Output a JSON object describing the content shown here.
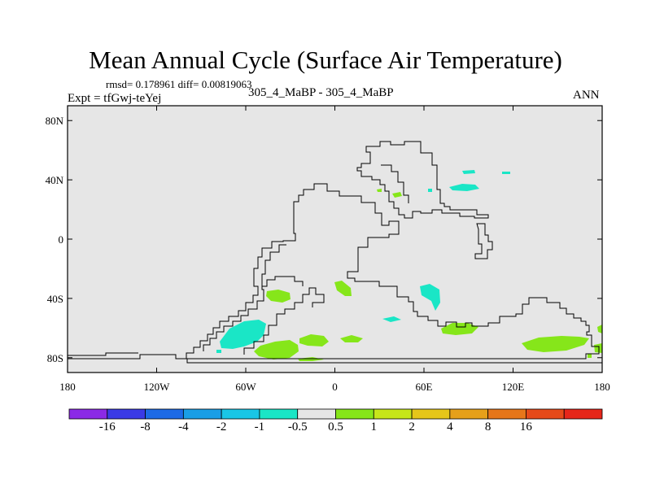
{
  "title": "Mean Annual Cycle (Surface Air Temperature)",
  "stats_line": "rmsd= 0.178961 diff= 0.00819063",
  "experiment": "Expt = tfGwj-teYej",
  "subtitle": "305_4_MaBP - 305_4_MaBP",
  "season": "ANN",
  "map": {
    "projection": "cylindrical equidistant",
    "lat_range": [
      -90,
      90
    ],
    "lon_range": [
      -180,
      180
    ],
    "ocean_color": "#e6e6e6",
    "coast_color": "#000000",
    "y_ticks": [
      {
        "label": "80N",
        "lat": 80
      },
      {
        "label": "40N",
        "lat": 40
      },
      {
        "label": "0",
        "lat": 0
      },
      {
        "label": "40S",
        "lat": -40
      },
      {
        "label": "80S",
        "lat": -80
      }
    ],
    "x_ticks": [
      {
        "label": "180",
        "lon": -180
      },
      {
        "label": "120W",
        "lon": -120
      },
      {
        "label": "60W",
        "lon": -60
      },
      {
        "label": "0",
        "lon": 0
      },
      {
        "label": "60E",
        "lon": 60
      },
      {
        "label": "120E",
        "lon": 120
      },
      {
        "label": "180",
        "lon": 180
      }
    ]
  },
  "colorbar": {
    "colors": [
      "#8b2ae6",
      "#3a3ae6",
      "#1d6ae6",
      "#1a9ee6",
      "#19c6e6",
      "#1ae6c6",
      "#e6e6e6",
      "#86e61a",
      "#c6e61a",
      "#e6c61a",
      "#e6a01a",
      "#e6761a",
      "#e64a1a",
      "#e6261a"
    ],
    "labels": [
      "-16",
      "-8",
      "-4",
      "-2",
      "-1",
      "-0.5",
      "0.5",
      "1",
      "2",
      "4",
      "8",
      "16"
    ]
  }
}
